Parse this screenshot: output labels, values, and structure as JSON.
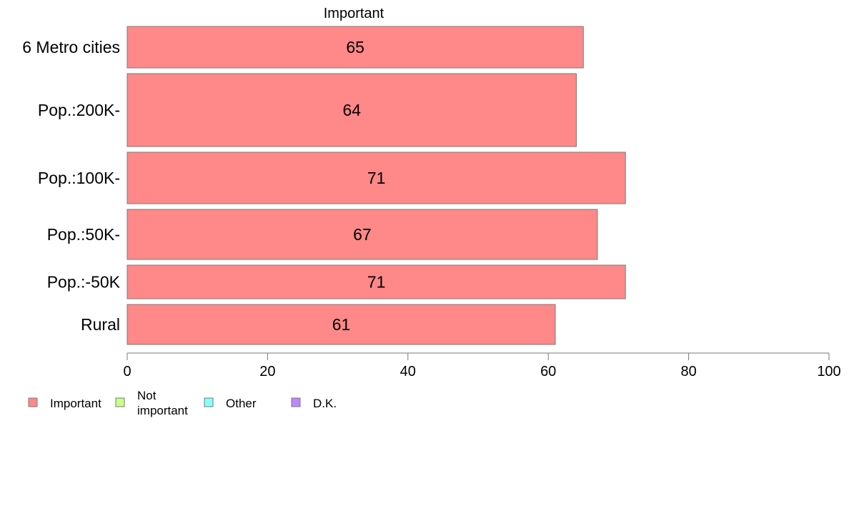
{
  "chart_data": {
    "type": "bar",
    "orientation": "horizontal",
    "header": "Important",
    "categories": [
      "6 Metro cities",
      "Pop.:200K-",
      "Pop.:100K-",
      "Pop.:50K-",
      "Pop.:-50K",
      "Rural"
    ],
    "series": [
      {
        "name": "Important",
        "values": [
          65,
          64,
          71,
          67,
          71,
          61
        ],
        "color": "#ff8888"
      }
    ],
    "xlim": [
      0,
      100
    ],
    "xticks": [
      0,
      20,
      40,
      60,
      80,
      100
    ],
    "grid": false,
    "legend": {
      "position": "bottom-left",
      "entries": [
        {
          "label": "Important",
          "color": "#ff8888"
        },
        {
          "label": "Not important",
          "color": "#ccff88"
        },
        {
          "label": "Other",
          "color": "#88ffff"
        },
        {
          "label": "D.K.",
          "color": "#bb88ff"
        }
      ]
    }
  }
}
